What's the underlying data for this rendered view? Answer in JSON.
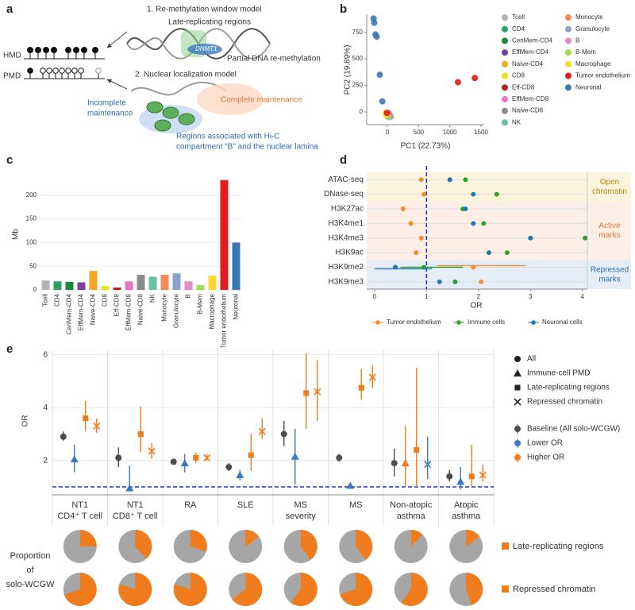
{
  "panel_labels": [
    "a",
    "b",
    "c",
    "d",
    "e"
  ],
  "diagram": {
    "hmd": "HMD",
    "pmd": "PMD",
    "model1": "1. Re-methylation window model",
    "late": "Late-replicating regions",
    "dnmt1": "DNMT1",
    "partial": "Partial DNA re-methylation",
    "model2": "2. Nuclear localization model",
    "complete": "Complete maintenance",
    "incomplete": [
      "Incomplete",
      "maintenance"
    ],
    "regions": [
      "Regions associated with Hi-C",
      "compartment \"B\" and the nuclear lamina"
    ]
  },
  "chart_data": [
    {
      "type": "scatter",
      "xlabel": "PC1 (22.73%)",
      "ylabel": "PC2 (19.89%)",
      "xlim": [
        -330,
        1550
      ],
      "xticks": [
        0,
        500,
        1000,
        1500
      ],
      "ylim": [
        -120,
        920
      ],
      "yticks": [
        0,
        250,
        500,
        750
      ],
      "series": [
        {
          "name": "Tcell",
          "color": "#b3b3b3",
          "x": [
            10
          ],
          "values": [
            -20
          ]
        },
        {
          "name": "CD4",
          "color": "#2ca25f",
          "x": [
            -5
          ],
          "values": [
            -10
          ]
        },
        {
          "name": "CenMem-CD4",
          "color": "#1b8a3e",
          "x": [
            0
          ],
          "values": [
            -15
          ]
        },
        {
          "name": "EffMem-CD4",
          "color": "#7b3fa0",
          "x": [
            5
          ],
          "values": [
            -25
          ]
        },
        {
          "name": "Naive-CD4",
          "color": "#f5a623",
          "x": [
            -10
          ],
          "values": [
            -30
          ]
        },
        {
          "name": "CD8",
          "color": "#e8e21a",
          "x": [
            -20
          ],
          "values": [
            -5
          ]
        },
        {
          "name": "Eff-CD8",
          "color": "#b22222",
          "x": [
            15
          ],
          "values": [
            -35
          ]
        },
        {
          "name": "EffMem-CD8",
          "color": "#e377c2",
          "x": [
            20
          ],
          "values": [
            -10
          ]
        },
        {
          "name": "Naive-CD8",
          "color": "#8c8c8c",
          "x": [
            30
          ],
          "values": [
            -40
          ]
        },
        {
          "name": "NK",
          "color": "#66c2a5",
          "x": [
            -15
          ],
          "values": [
            -20
          ]
        },
        {
          "name": "Monocyte",
          "color": "#f58a54",
          "x": [
            40
          ],
          "values": [
            -30
          ]
        },
        {
          "name": "Granulocyte",
          "color": "#8da0cb",
          "x": [
            55
          ],
          "values": [
            -45
          ]
        },
        {
          "name": "B",
          "color": "#e78ac3",
          "x": [
            25
          ],
          "values": [
            -50
          ]
        },
        {
          "name": "B-Mem",
          "color": "#a6d854",
          "x": [
            10
          ],
          "values": [
            -45
          ]
        },
        {
          "name": "Macrophage",
          "color": "#ffd92f",
          "x": [
            -25
          ],
          "values": [
            -25
          ]
        },
        {
          "name": "Tumor endothelium",
          "color": "#e41a1c",
          "x": [
            1130,
            1400,
            -5
          ],
          "values": [
            280,
            320,
            -10
          ]
        },
        {
          "name": "Neuronal",
          "color": "#3a78b5",
          "x": [
            -220,
            -210,
            -190,
            -170,
            -120,
            -80
          ],
          "values": [
            880,
            840,
            730,
            710,
            350,
            100
          ]
        }
      ]
    },
    {
      "type": "bar",
      "ylabel": "Mb",
      "ylim": [
        0,
        235
      ],
      "yticks": [
        0,
        50,
        100,
        150,
        200
      ],
      "categories": [
        "Tcell",
        "CD4",
        "CenMem-CD4",
        "EffMem-CD4",
        "Naive-CD4",
        "CD8",
        "Eff-CD8",
        "EffMem-CD8",
        "Naive-CD8",
        "NK",
        "Monocyte",
        "Granulocyte",
        "B",
        "B-Mem",
        "Macrophage",
        "Tumor endothelium",
        "Neuronal"
      ],
      "values": [
        20,
        18,
        17,
        16,
        40,
        8,
        5,
        18,
        32,
        28,
        32,
        35,
        18,
        10,
        30,
        232,
        100
      ],
      "colors": [
        "#b3b3b3",
        "#2ca25f",
        "#1b8a3e",
        "#7b3fa0",
        "#f5a623",
        "#e8e21a",
        "#b22222",
        "#e377c2",
        "#8c8c8c",
        "#66c2a5",
        "#f58a54",
        "#8da0cb",
        "#e78ac3",
        "#a6d854",
        "#ffd92f",
        "#e41a1c",
        "#3a78b5"
      ]
    },
    {
      "type": "dot",
      "xlabel": "OR",
      "xlim": [
        -0.15,
        4.4
      ],
      "xticks": [
        0,
        1,
        2,
        3,
        4
      ],
      "ref_line": 1,
      "categories": [
        "ATAC-seq",
        "DNase-seq",
        "H3K27ac",
        "H3K4me1",
        "H3K4me3",
        "H3K9ac",
        "H3K9me2",
        "H3K9me3"
      ],
      "groups": [
        {
          "name": [
            "Open",
            "chromatin"
          ],
          "count": 2,
          "color": "#b8860b",
          "bg": "#fdf4de"
        },
        {
          "name": [
            "Active",
            "marks"
          ],
          "count": 4,
          "color": "#e07b39",
          "bg": "#fdeee6"
        },
        {
          "name": [
            "Repressed",
            "marks"
          ],
          "count": 2,
          "color": "#2f6db5",
          "bg": "#e4edf8"
        }
      ],
      "series": [
        {
          "name": "Tumor endothelium",
          "color": "#f28e2b",
          "values": [
            0.9,
            0.95,
            0.55,
            0.7,
            0.9,
            0.8,
            1.9,
            2.05
          ],
          "lower": [
            null,
            null,
            null,
            null,
            null,
            null,
            1.2,
            null
          ],
          "upper": [
            null,
            null,
            null,
            null,
            null,
            null,
            2.9,
            null
          ]
        },
        {
          "name": "Immune cells",
          "color": "#2ca02c",
          "values": [
            1.75,
            2.35,
            1.7,
            2.1,
            4.05,
            2.55,
            0.95,
            1.55
          ],
          "lower": [
            null,
            null,
            null,
            null,
            null,
            null,
            0.5,
            null
          ],
          "upper": [
            null,
            null,
            null,
            null,
            null,
            null,
            1.7,
            null
          ]
        },
        {
          "name": "Neuronal cells",
          "color": "#1f77b4",
          "values": [
            1.45,
            1.9,
            1.75,
            1.9,
            3.0,
            2.2,
            0.4,
            1.25
          ],
          "lower": [
            null,
            null,
            null,
            null,
            null,
            null,
            0.0,
            null
          ],
          "upper": [
            null,
            null,
            null,
            null,
            null,
            null,
            1.1,
            null
          ]
        }
      ]
    },
    {
      "type": "errorbar",
      "ylabel": "OR",
      "ylim": [
        0.7,
        6.2
      ],
      "yticks": [
        2,
        4,
        6
      ],
      "ref_line": 1,
      "categories": [
        [
          "NT1",
          "CD4⁺ T cell"
        ],
        [
          "NT1",
          "CD8⁺ T cell"
        ],
        [
          "RA"
        ],
        [
          "SLE"
        ],
        [
          "MS",
          "severity"
        ],
        [
          "MS"
        ],
        [
          "Non-atopic",
          "asthma"
        ],
        [
          "Atopic",
          "asthma"
        ]
      ],
      "series": [
        {
          "name": "All",
          "marker": "circle",
          "values": [
            2.9,
            2.1,
            1.95,
            1.75,
            3.0,
            2.1,
            1.9,
            1.4
          ],
          "lower": [
            2.75,
            1.75,
            1.85,
            1.6,
            2.55,
            1.95,
            1.4,
            1.2
          ],
          "upper": [
            3.1,
            2.5,
            2.05,
            1.9,
            3.5,
            2.25,
            2.45,
            1.65
          ],
          "colors": [
            "#4d4d4d",
            "#4d4d4d",
            "#4d4d4d",
            "#4d4d4d",
            "#4d4d4d",
            "#4d4d4d",
            "#4d4d4d",
            "#4d4d4d"
          ]
        },
        {
          "name": "Immune-cell PMD",
          "marker": "triangle",
          "values": [
            2.05,
            0.95,
            1.9,
            1.45,
            2.15,
            1.05,
            1.9,
            1.2
          ],
          "lower": [
            1.55,
            0.9,
            1.55,
            1.25,
            1.1,
            0.95,
            1.0,
            0.9
          ],
          "upper": [
            2.6,
            1.8,
            2.25,
            1.65,
            3.2,
            1.15,
            3.3,
            1.75
          ],
          "colors": [
            "#3a7bbf",
            "#3a7bbf",
            "#3a7bbf",
            "#3a7bbf",
            "#3a7bbf",
            "#3a7bbf",
            "#f07c1e",
            "#3a7bbf"
          ]
        },
        {
          "name": "Late-replicating regions",
          "marker": "square",
          "values": [
            3.6,
            3.0,
            2.1,
            2.2,
            4.55,
            4.75,
            2.4,
            1.4
          ],
          "lower": [
            3.1,
            2.3,
            1.9,
            1.6,
            3.2,
            4.3,
            1.0,
            1.0
          ],
          "upper": [
            4.25,
            4.05,
            2.3,
            3.0,
            6.05,
            5.45,
            5.5,
            2.6
          ],
          "colors": [
            "#f07c1e",
            "#f07c1e",
            "#f07c1e",
            "#f07c1e",
            "#f07c1e",
            "#f07c1e",
            "#f07c1e",
            "#f07c1e"
          ]
        },
        {
          "name": "Repressed chromatin",
          "marker": "x",
          "values": [
            3.3,
            2.35,
            2.1,
            3.1,
            4.6,
            5.15,
            1.85,
            1.45
          ],
          "lower": [
            3.05,
            2.05,
            2.0,
            2.8,
            3.5,
            4.75,
            1.3,
            1.2
          ],
          "upper": [
            3.6,
            2.65,
            2.25,
            3.6,
            5.8,
            5.6,
            2.9,
            1.85
          ],
          "colors": [
            "#f07c1e",
            "#f07c1e",
            "#f07c1e",
            "#f07c1e",
            "#f07c1e",
            "#f07c1e",
            "#3a7bbf",
            "#f07c1e"
          ]
        }
      ],
      "color_legend": [
        {
          "name": "Baseline (All solo-WCGW)",
          "color": "#4d4d4d"
        },
        {
          "name": "Lower OR",
          "color": "#3a7bbf"
        },
        {
          "name": "Higher OR",
          "color": "#f07c1e"
        }
      ],
      "pies": {
        "title": [
          "Proportion",
          "of",
          "solo-WCGW"
        ],
        "color": "#f07c1e",
        "rest_color": "#a6a6a6",
        "rows": [
          {
            "name": "Late-replicating regions",
            "values": [
              25,
              38,
              30,
              15,
              40,
              40,
              12,
              15
            ]
          },
          {
            "name": "Repressed chromatin",
            "values": [
              70,
              80,
              80,
              65,
              60,
              70,
              60,
              45
            ]
          }
        ]
      }
    }
  ]
}
